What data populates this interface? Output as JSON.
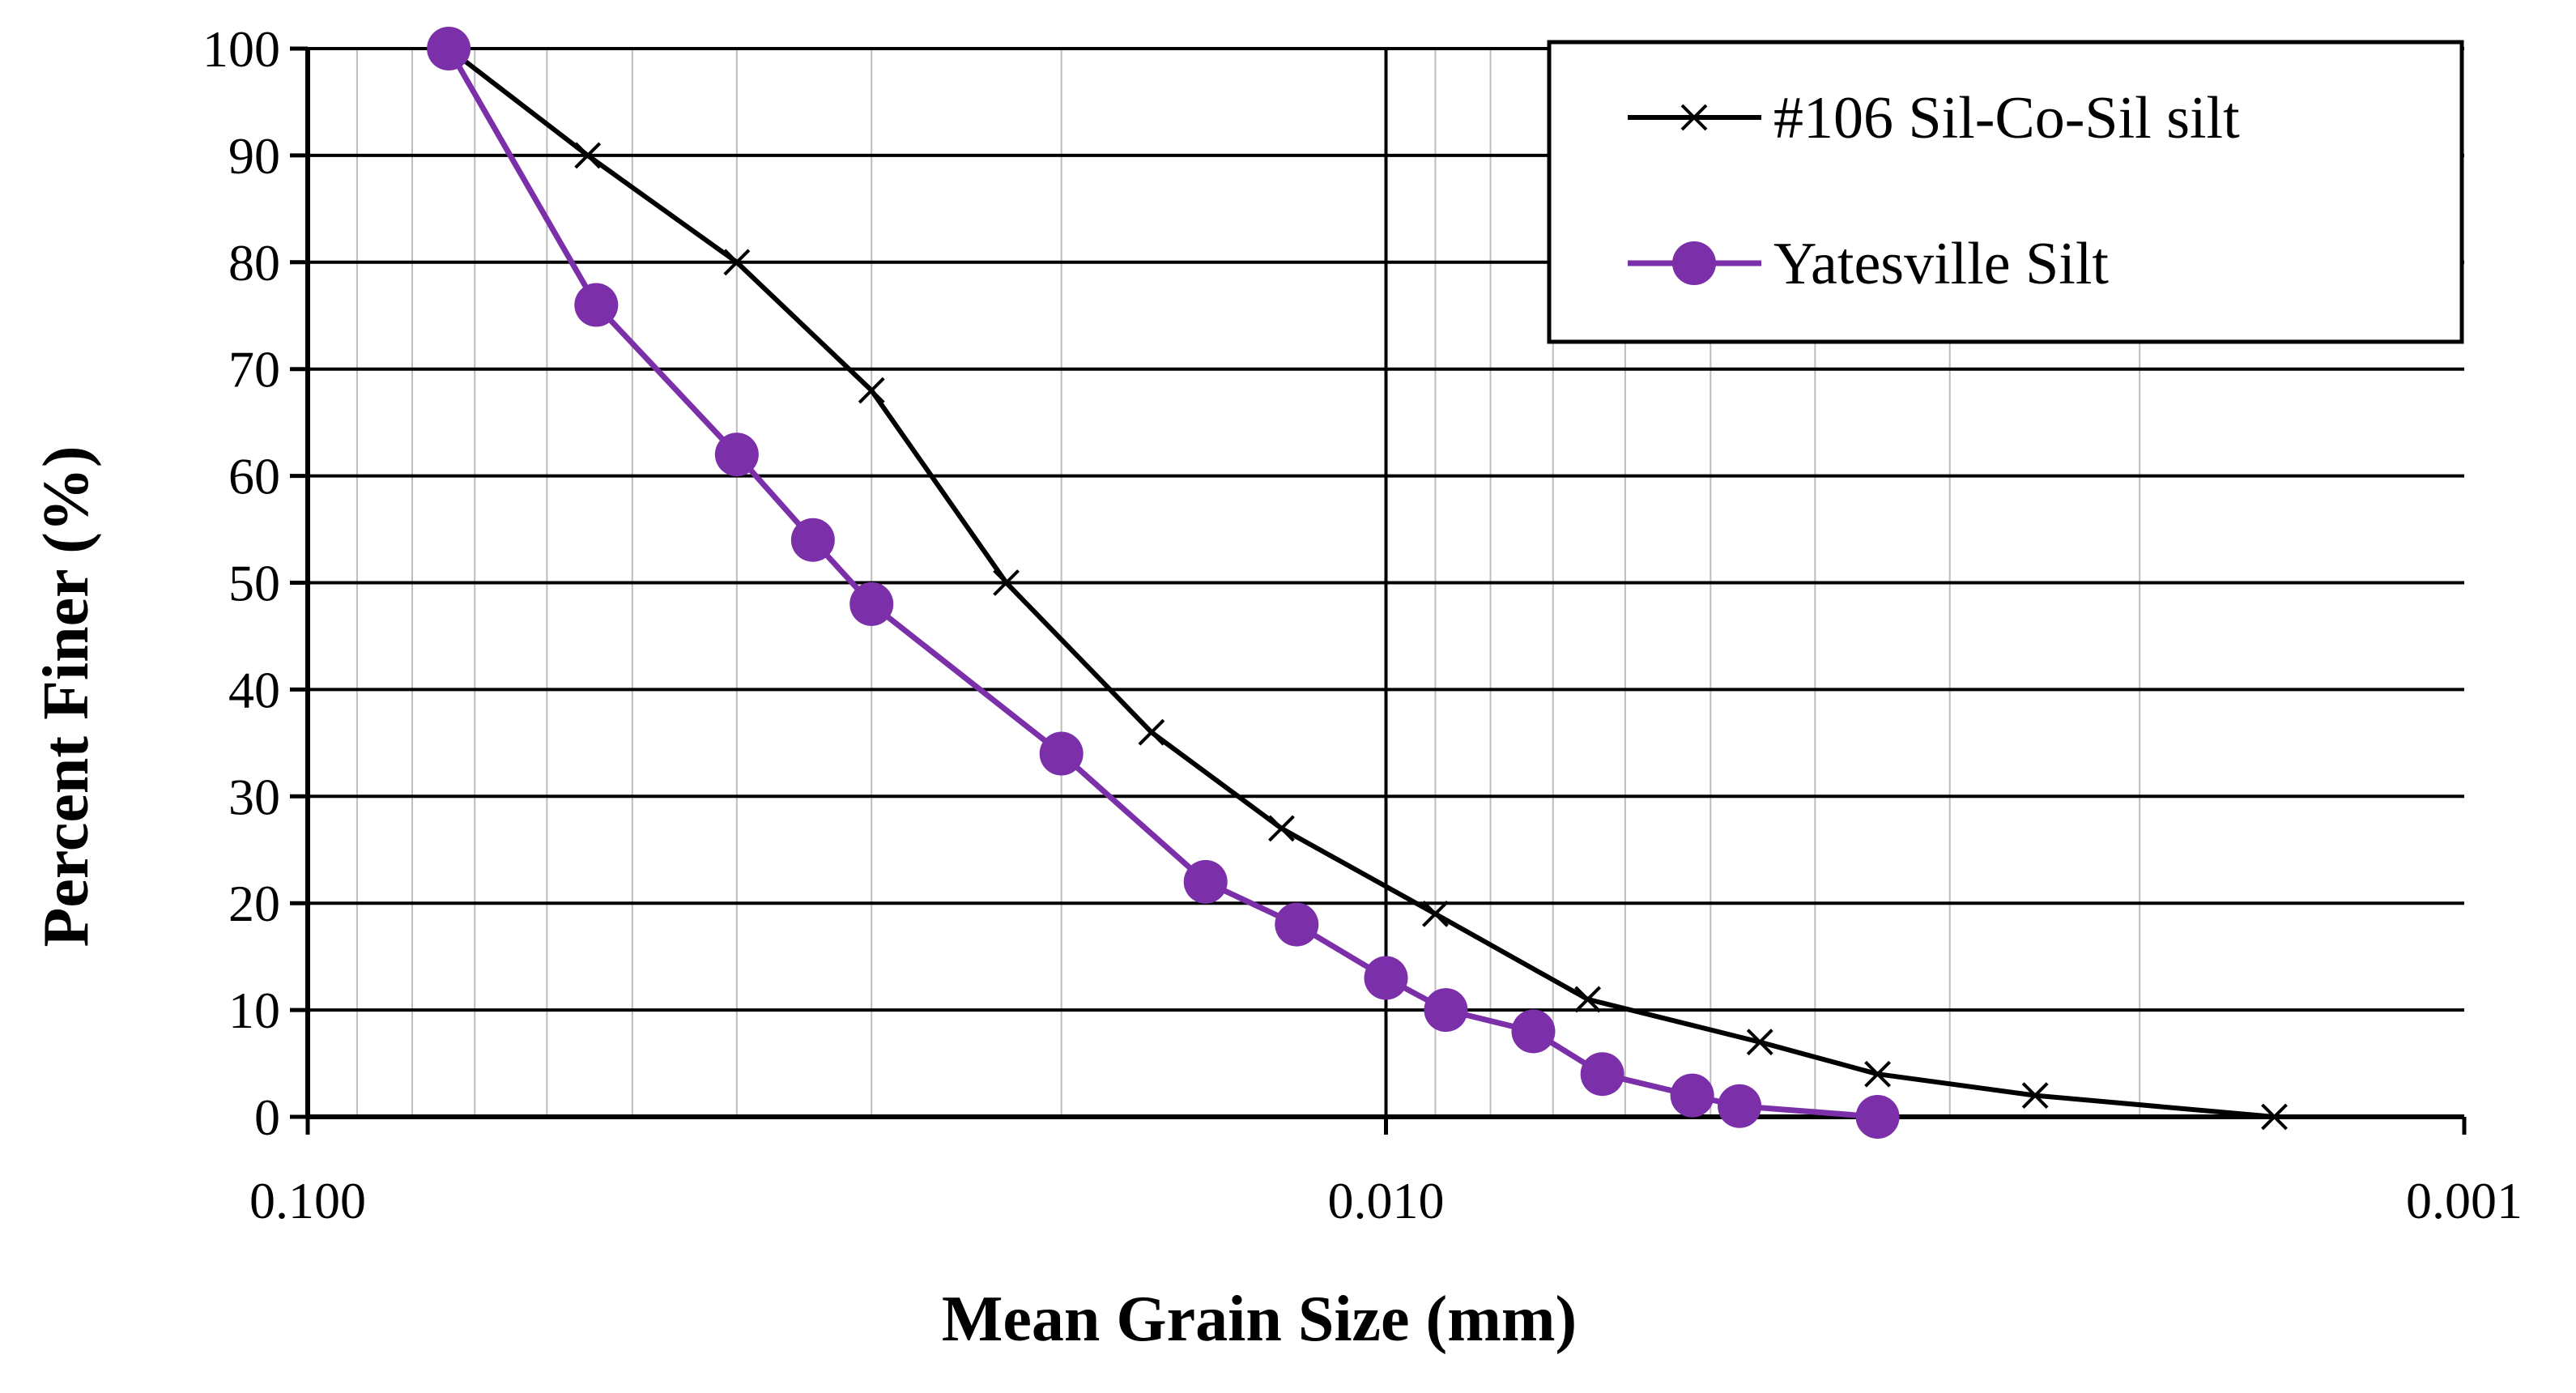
{
  "chart_data": {
    "type": "line",
    "title": "",
    "xlabel": "Mean Grain Size (mm)",
    "ylabel": "Percent Finer (%)",
    "x_scale": "log",
    "x_reversed": true,
    "xlim": [
      0.1,
      0.001
    ],
    "ylim": [
      0,
      100
    ],
    "x_ticks": [
      {
        "value": 0.1,
        "label": "0.100"
      },
      {
        "value": 0.01,
        "label": "0.010"
      },
      {
        "value": 0.001,
        "label": "0.001"
      }
    ],
    "y_ticks": [
      {
        "value": 0,
        "label": "0"
      },
      {
        "value": 10,
        "label": "10"
      },
      {
        "value": 20,
        "label": "20"
      },
      {
        "value": 30,
        "label": "30"
      },
      {
        "value": 40,
        "label": "40"
      },
      {
        "value": 50,
        "label": "50"
      },
      {
        "value": 60,
        "label": "60"
      },
      {
        "value": 70,
        "label": "70"
      },
      {
        "value": 80,
        "label": "80"
      },
      {
        "value": 90,
        "label": "90"
      },
      {
        "value": 100,
        "label": "100"
      }
    ],
    "grid": true,
    "legend_position": "top-right",
    "series": [
      {
        "name": "#106 Sil-Co-Sil silt",
        "color": "#000000",
        "marker": "x",
        "x": [
          0.074,
          0.055,
          0.04,
          0.03,
          0.0225,
          0.0165,
          0.0125,
          0.009,
          0.0065,
          0.0045,
          0.0035,
          0.0025,
          0.0015
        ],
        "y": [
          100,
          90,
          80,
          68,
          50,
          36,
          27,
          19,
          11,
          7,
          4,
          2,
          0
        ]
      },
      {
        "name": "Yatesville Silt",
        "color": "#7B2FA8",
        "marker": "circle",
        "x": [
          0.074,
          0.054,
          0.04,
          0.034,
          0.03,
          0.02,
          0.0147,
          0.0121,
          0.01,
          0.0088,
          0.0073,
          0.0063,
          0.0052,
          0.0047,
          0.0035
        ],
        "y": [
          100,
          76,
          62,
          54,
          48,
          34,
          22,
          18,
          13,
          10,
          8,
          4,
          2,
          1,
          0
        ]
      }
    ]
  }
}
